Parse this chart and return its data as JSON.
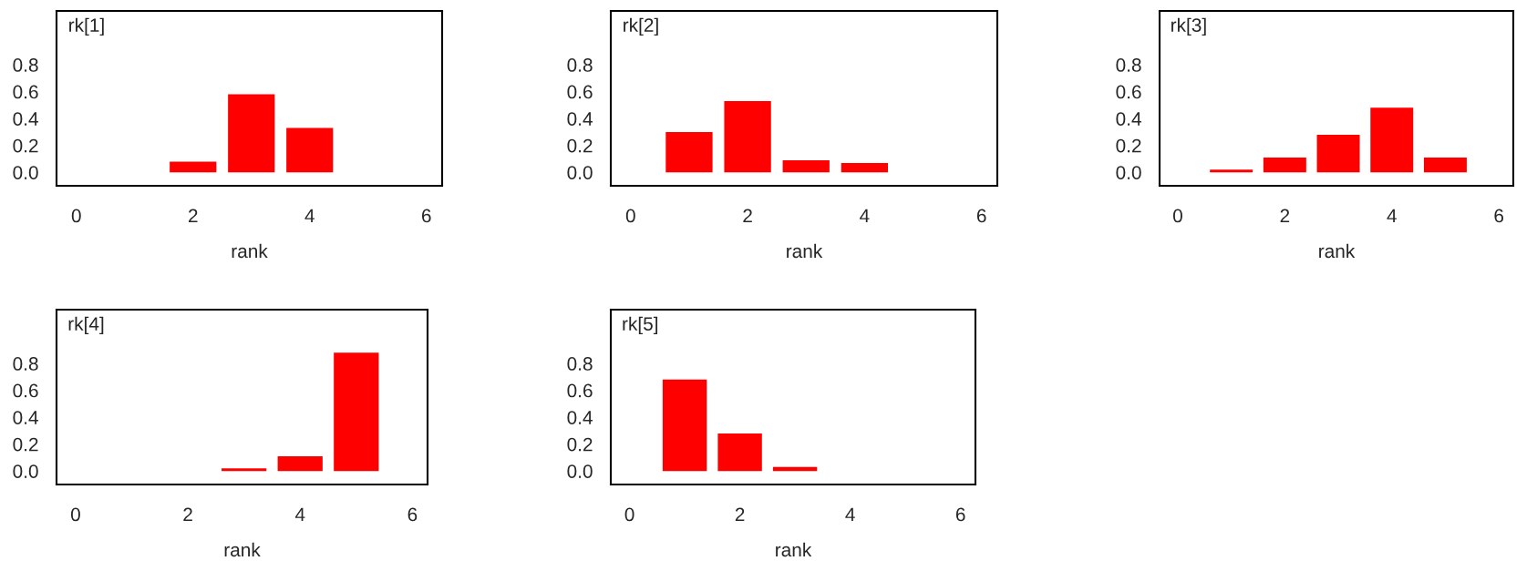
{
  "chart_data": [
    {
      "type": "bar",
      "title": "rk[1]",
      "xlabel": "rank",
      "x": [
        2,
        3,
        4
      ],
      "values": [
        0.08,
        0.58,
        0.33
      ],
      "color": "#ff0000",
      "xlim": [
        -0.34,
        6.27
      ],
      "ylim": [
        -0.1,
        1.2
      ],
      "xticks": [
        0,
        2,
        4,
        6
      ],
      "yticks": [
        {
          "value": 0,
          "label": "0.0"
        },
        {
          "value": 0.2,
          "label": "0.2"
        },
        {
          "value": 0.4,
          "label": "0.4"
        },
        {
          "value": 0.6,
          "label": "0.6"
        },
        {
          "value": 0.8,
          "label": "0.8"
        }
      ]
    },
    {
      "type": "bar",
      "title": "rk[2]",
      "xlabel": "rank",
      "x": [
        1,
        2,
        3,
        4
      ],
      "values": [
        0.3,
        0.53,
        0.09,
        0.07
      ],
      "color": "#ff0000",
      "xlim": [
        -0.34,
        6.27
      ],
      "ylim": [
        -0.1,
        1.2
      ],
      "xticks": [
        0,
        2,
        4,
        6
      ],
      "yticks": [
        {
          "value": 0,
          "label": "0.0"
        },
        {
          "value": 0.2,
          "label": "0.2"
        },
        {
          "value": 0.4,
          "label": "0.4"
        },
        {
          "value": 0.6,
          "label": "0.6"
        },
        {
          "value": 0.8,
          "label": "0.8"
        }
      ]
    },
    {
      "type": "bar",
      "title": "rk[3]",
      "xlabel": "rank",
      "x": [
        1,
        2,
        3,
        4,
        5
      ],
      "values": [
        0.02,
        0.11,
        0.28,
        0.48,
        0.11
      ],
      "color": "#ff0000",
      "xlim": [
        -0.34,
        6.27
      ],
      "ylim": [
        -0.1,
        1.2
      ],
      "xticks": [
        0,
        2,
        4,
        6
      ],
      "yticks": [
        {
          "value": 0,
          "label": "0.0"
        },
        {
          "value": 0.2,
          "label": "0.2"
        },
        {
          "value": 0.4,
          "label": "0.4"
        },
        {
          "value": 0.6,
          "label": "0.6"
        },
        {
          "value": 0.8,
          "label": "0.8"
        }
      ]
    },
    {
      "type": "bar",
      "title": "rk[4]",
      "xlabel": "rank",
      "x": [
        3,
        4,
        5
      ],
      "values": [
        0.02,
        0.11,
        0.88
      ],
      "color": "#ff0000",
      "xlim": [
        -0.34,
        6.27
      ],
      "ylim": [
        -0.1,
        1.2
      ],
      "xticks": [
        0,
        2,
        4,
        6
      ],
      "yticks": [
        {
          "value": 0,
          "label": "0.0"
        },
        {
          "value": 0.2,
          "label": "0.2"
        },
        {
          "value": 0.4,
          "label": "0.4"
        },
        {
          "value": 0.6,
          "label": "0.6"
        },
        {
          "value": 0.8,
          "label": "0.8"
        }
      ]
    },
    {
      "type": "bar",
      "title": "rk[5]",
      "xlabel": "rank",
      "x": [
        1,
        2,
        3
      ],
      "values": [
        0.68,
        0.28,
        0.03
      ],
      "color": "#ff0000",
      "xlim": [
        -0.34,
        6.27
      ],
      "ylim": [
        -0.1,
        1.2
      ],
      "xticks": [
        0,
        2,
        4,
        6
      ],
      "yticks": [
        {
          "value": 0,
          "label": "0.0"
        },
        {
          "value": 0.2,
          "label": "0.2"
        },
        {
          "value": 0.4,
          "label": "0.4"
        },
        {
          "value": 0.6,
          "label": "0.6"
        },
        {
          "value": 0.8,
          "label": "0.8"
        }
      ]
    }
  ]
}
